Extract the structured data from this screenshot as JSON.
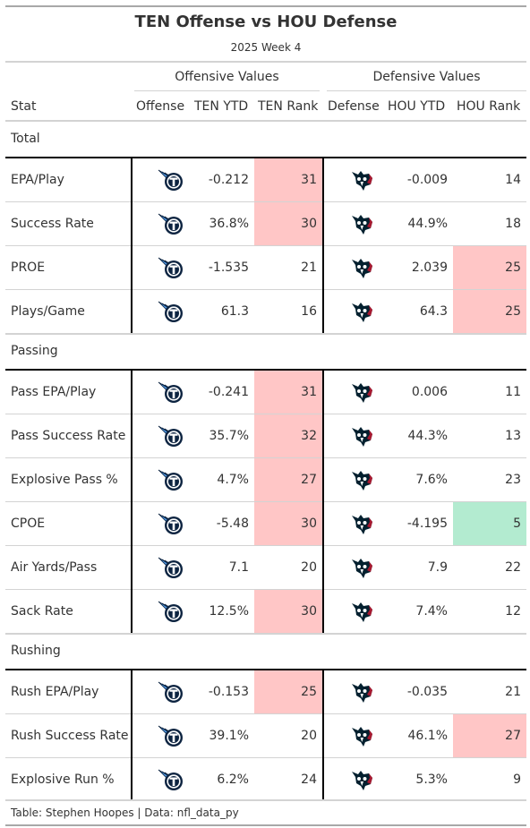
{
  "title": "TEN Offense vs HOU Defense",
  "subtitle": "2025 Week 4",
  "spanners": {
    "offense": "Offensive Values",
    "defense": "Defensive Values"
  },
  "columns": {
    "stat": "Stat",
    "offense": "Offense",
    "ten_ytd": "TEN YTD",
    "ten_rank": "TEN Rank",
    "defense": "Defense",
    "hou_ytd": "HOU YTD",
    "hou_rank": "HOU Rank"
  },
  "colors": {
    "bad": "#ffc6c6",
    "good": "#b3ebd0",
    "ten_navy": "#0c2340",
    "ten_blue": "#4b92db",
    "hou_navy": "#03202f",
    "hou_red": "#a71930"
  },
  "icons": {
    "offense": "titans-logo-icon",
    "defense": "texans-logo-icon"
  },
  "groups": [
    {
      "label": "Total",
      "rows": [
        {
          "stat": "EPA/Play",
          "ten_ytd": "-0.212",
          "ten_rank": "31",
          "ten_highlight": "bad",
          "hou_ytd": "-0.009",
          "hou_rank": "14",
          "hou_highlight": ""
        },
        {
          "stat": "Success Rate",
          "ten_ytd": "36.8%",
          "ten_rank": "30",
          "ten_highlight": "bad",
          "hou_ytd": "44.9%",
          "hou_rank": "18",
          "hou_highlight": ""
        },
        {
          "stat": "PROE",
          "ten_ytd": "-1.535",
          "ten_rank": "21",
          "ten_highlight": "",
          "hou_ytd": "2.039",
          "hou_rank": "25",
          "hou_highlight": "bad"
        },
        {
          "stat": "Plays/Game",
          "ten_ytd": "61.3",
          "ten_rank": "16",
          "ten_highlight": "",
          "hou_ytd": "64.3",
          "hou_rank": "25",
          "hou_highlight": "bad"
        }
      ]
    },
    {
      "label": "Passing",
      "rows": [
        {
          "stat": "Pass EPA/Play",
          "ten_ytd": "-0.241",
          "ten_rank": "31",
          "ten_highlight": "bad",
          "hou_ytd": "0.006",
          "hou_rank": "11",
          "hou_highlight": ""
        },
        {
          "stat": "Pass Success Rate",
          "ten_ytd": "35.7%",
          "ten_rank": "32",
          "ten_highlight": "bad",
          "hou_ytd": "44.3%",
          "hou_rank": "13",
          "hou_highlight": ""
        },
        {
          "stat": "Explosive Pass %",
          "ten_ytd": "4.7%",
          "ten_rank": "27",
          "ten_highlight": "bad",
          "hou_ytd": "7.6%",
          "hou_rank": "23",
          "hou_highlight": ""
        },
        {
          "stat": "CPOE",
          "ten_ytd": "-5.48",
          "ten_rank": "30",
          "ten_highlight": "bad",
          "hou_ytd": "-4.195",
          "hou_rank": "5",
          "hou_highlight": "good"
        },
        {
          "stat": "Air Yards/Pass",
          "ten_ytd": "7.1",
          "ten_rank": "20",
          "ten_highlight": "",
          "hou_ytd": "7.9",
          "hou_rank": "22",
          "hou_highlight": ""
        },
        {
          "stat": "Sack Rate",
          "ten_ytd": "12.5%",
          "ten_rank": "30",
          "ten_highlight": "bad",
          "hou_ytd": "7.4%",
          "hou_rank": "12",
          "hou_highlight": ""
        }
      ]
    },
    {
      "label": "Rushing",
      "rows": [
        {
          "stat": "Rush EPA/Play",
          "ten_ytd": "-0.153",
          "ten_rank": "25",
          "ten_highlight": "bad",
          "hou_ytd": "-0.035",
          "hou_rank": "21",
          "hou_highlight": ""
        },
        {
          "stat": "Rush Success Rate",
          "ten_ytd": "39.1%",
          "ten_rank": "20",
          "ten_highlight": "",
          "hou_ytd": "46.1%",
          "hou_rank": "27",
          "hou_highlight": "bad"
        },
        {
          "stat": "Explosive Run %",
          "ten_ytd": "6.2%",
          "ten_rank": "24",
          "ten_highlight": "",
          "hou_ytd": "5.3%",
          "hou_rank": "9",
          "hou_highlight": ""
        }
      ]
    }
  ],
  "source_note": "Table: Stephen Hoopes | Data: nfl_data_py"
}
